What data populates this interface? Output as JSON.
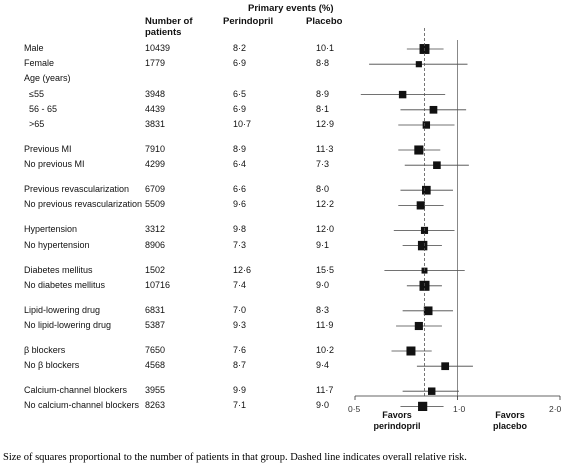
{
  "header": {
    "primary_events": "Primary events (%)",
    "number_label": "Number of patients",
    "perindopril": "Perindopril",
    "placebo": "Placebo"
  },
  "chart_data": {
    "type": "forest",
    "reference_line": 1.0,
    "overall_relative_risk": 0.8,
    "x_ticks": [
      "0·5",
      "1·0",
      "2·0"
    ],
    "xlim": [
      0.5,
      2.0
    ],
    "x_scale": "log",
    "favors_left": "Favors perindopril",
    "favors_right": "Favors placebo",
    "rows": [
      {
        "label": "Male",
        "n": "10439",
        "perindopril": "8·2",
        "placebo": "10·1",
        "rr": 0.8,
        "ci": [
          0.71,
          0.91
        ],
        "weight": 10439
      },
      {
        "label": "Female",
        "n": "1779",
        "perindopril": "6·9",
        "placebo": "8·8",
        "rr": 0.77,
        "ci": [
          0.55,
          1.07
        ],
        "weight": 1779
      },
      {
        "label": "Age (years)",
        "header": true
      },
      {
        "label": "≤55",
        "n": "3948",
        "perindopril": "6·5",
        "placebo": "8·9",
        "rr": 0.69,
        "ci": [
          0.52,
          0.92
        ],
        "weight": 3948,
        "indent": true
      },
      {
        "label": "56 - 65",
        "n": "4439",
        "perindopril": "6·9",
        "placebo": "8·1",
        "rr": 0.85,
        "ci": [
          0.68,
          1.06
        ],
        "weight": 4439,
        "indent": true
      },
      {
        "label": ">65",
        "n": "3831",
        "perindopril": "10·7",
        "placebo": "12·9",
        "rr": 0.81,
        "ci": [
          0.67,
          0.98
        ],
        "weight": 3831,
        "indent": true
      },
      {
        "label": "Previous MI",
        "n": "7910",
        "perindopril": "8·9",
        "placebo": "11·3",
        "rr": 0.77,
        "ci": [
          0.67,
          0.89
        ],
        "weight": 7910,
        "gap": true
      },
      {
        "label": "No previous MI",
        "n": "4299",
        "perindopril": "6·4",
        "placebo": "7·3",
        "rr": 0.87,
        "ci": [
          0.7,
          1.08
        ],
        "weight": 4299
      },
      {
        "label": "Previous revascularization",
        "n": "6709",
        "perindopril": "6·6",
        "placebo": "8·0",
        "rr": 0.81,
        "ci": [
          0.68,
          0.97
        ],
        "weight": 6709,
        "gap": true
      },
      {
        "label": "No previous revascularization",
        "n": "5509",
        "perindopril": "9·6",
        "placebo": "12·2",
        "rr": 0.78,
        "ci": [
          0.67,
          0.91
        ],
        "weight": 5509
      },
      {
        "label": "Hypertension",
        "n": "3312",
        "perindopril": "9·8",
        "placebo": "12·0",
        "rr": 0.8,
        "ci": [
          0.65,
          0.98
        ],
        "weight": 3312,
        "gap": true
      },
      {
        "label": "No hypertension",
        "n": "8906",
        "perindopril": "7·3",
        "placebo": "9·1",
        "rr": 0.79,
        "ci": [
          0.69,
          0.9
        ],
        "weight": 8906
      },
      {
        "label": "Diabetes mellitus",
        "n": "1502",
        "perindopril": "12·6",
        "placebo": "15·5",
        "rr": 0.8,
        "ci": [
          0.61,
          1.05
        ],
        "weight": 1502,
        "gap": true
      },
      {
        "label": "No diabetes mellitus",
        "n": "10716",
        "perindopril": "7·4",
        "placebo": "9·0",
        "rr": 0.8,
        "ci": [
          0.71,
          0.9
        ],
        "weight": 10716
      },
      {
        "label": "Lipid-lowering drug",
        "n": "6831",
        "perindopril": "7·0",
        "placebo": "8·3",
        "rr": 0.82,
        "ci": [
          0.69,
          0.97
        ],
        "weight": 6831,
        "gap": true
      },
      {
        "label": "No lipid-lowering drug",
        "n": "5387",
        "perindopril": "9·3",
        "placebo": "11·9",
        "rr": 0.77,
        "ci": [
          0.66,
          0.9
        ],
        "weight": 5387
      },
      {
        "label": "β blockers",
        "n": "7650",
        "perindopril": "7·6",
        "placebo": "10·2",
        "rr": 0.73,
        "ci": [
          0.64,
          0.84
        ],
        "weight": 7650,
        "gap": true
      },
      {
        "label": "No β blockers",
        "n": "4568",
        "perindopril": "8·7",
        "placebo": "9·4",
        "rr": 0.92,
        "ci": [
          0.76,
          1.11
        ],
        "weight": 4568
      },
      {
        "label": "Calcium-channel blockers",
        "n": "3955",
        "perindopril": "9·9",
        "placebo": "11·7",
        "rr": 0.84,
        "ci": [
          0.69,
          1.01
        ],
        "weight": 3955,
        "gap": true
      },
      {
        "label": "No calcium-channel blockers",
        "n": "8263",
        "perindopril": "7·1",
        "placebo": "9·0",
        "rr": 0.79,
        "ci": [
          0.68,
          0.91
        ],
        "weight": 8263
      }
    ]
  },
  "caption": "Size of squares proportional to the number of patients in that group. Dashed line indicates overall relative risk."
}
